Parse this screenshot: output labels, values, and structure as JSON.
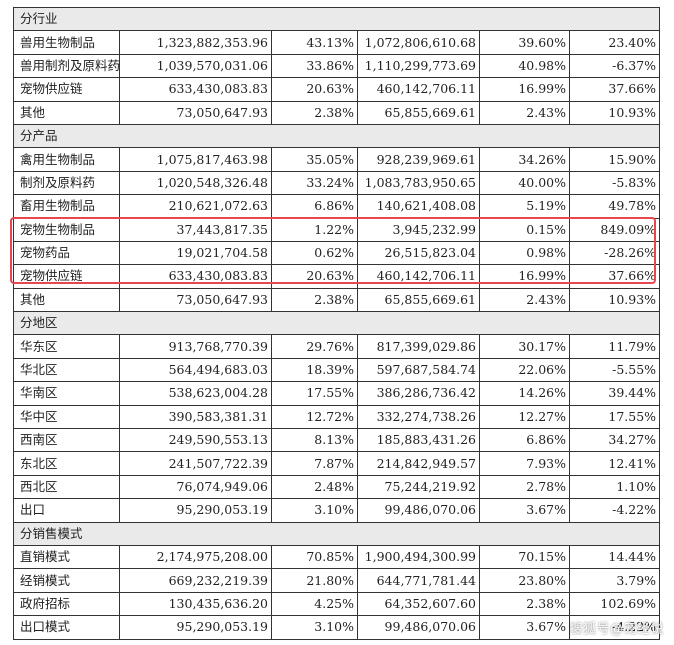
{
  "table": {
    "sections": [
      {
        "title": "分行业",
        "rows": [
          {
            "label": "兽用生物制品",
            "c1": "1,323,882,353.96",
            "c2": "43.13%",
            "c3": "1,072,806,610.68",
            "c4": "39.60%",
            "c5": "23.40%"
          },
          {
            "label": "兽用制剂及原料药",
            "c1": "1,039,570,031.06",
            "c2": "33.86%",
            "c3": "1,110,299,773.69",
            "c4": "40.98%",
            "c5": "-6.37%"
          },
          {
            "label": "宠物供应链",
            "c1": "633,430,083.83",
            "c2": "20.63%",
            "c3": "460,142,706.11",
            "c4": "16.99%",
            "c5": "37.66%"
          },
          {
            "label": "其他",
            "c1": "73,050,647.93",
            "c2": "2.38%",
            "c3": "65,855,669.61",
            "c4": "2.43%",
            "c5": "10.93%"
          }
        ]
      },
      {
        "title": "分产品",
        "rows": [
          {
            "label": "禽用生物制品",
            "c1": "1,075,817,463.98",
            "c2": "35.05%",
            "c3": "928,239,969.61",
            "c4": "34.26%",
            "c5": "15.90%"
          },
          {
            "label": "制剂及原料药",
            "c1": "1,020,548,326.48",
            "c2": "33.24%",
            "c3": "1,083,783,950.65",
            "c4": "40.00%",
            "c5": "-5.83%"
          },
          {
            "label": "畜用生物制品",
            "c1": "210,621,072.63",
            "c2": "6.86%",
            "c3": "140,621,408.08",
            "c4": "5.19%",
            "c5": "49.78%"
          },
          {
            "label": "宠物生物制品",
            "c1": "37,443,817.35",
            "c2": "1.22%",
            "c3": "3,945,232.99",
            "c4": "0.15%",
            "c5": "849.09%"
          },
          {
            "label": "宠物药品",
            "c1": "19,021,704.58",
            "c2": "0.62%",
            "c3": "26,515,823.04",
            "c4": "0.98%",
            "c5": "-28.26%"
          },
          {
            "label": "宠物供应链",
            "c1": "633,430,083.83",
            "c2": "20.63%",
            "c3": "460,142,706.11",
            "c4": "16.99%",
            "c5": "37.66%"
          },
          {
            "label": "其他",
            "c1": "73,050,647.93",
            "c2": "2.38%",
            "c3": "65,855,669.61",
            "c4": "2.43%",
            "c5": "10.93%"
          }
        ]
      },
      {
        "title": "分地区",
        "rows": [
          {
            "label": "华东区",
            "c1": "913,768,770.39",
            "c2": "29.76%",
            "c3": "817,399,029.86",
            "c4": "30.17%",
            "c5": "11.79%"
          },
          {
            "label": "华北区",
            "c1": "564,494,683.03",
            "c2": "18.39%",
            "c3": "597,687,584.74",
            "c4": "22.06%",
            "c5": "-5.55%"
          },
          {
            "label": "华南区",
            "c1": "538,623,004.28",
            "c2": "17.55%",
            "c3": "386,286,736.42",
            "c4": "14.26%",
            "c5": "39.44%"
          },
          {
            "label": "华中区",
            "c1": "390,583,381.31",
            "c2": "12.72%",
            "c3": "332,274,738.26",
            "c4": "12.27%",
            "c5": "17.55%"
          },
          {
            "label": "西南区",
            "c1": "249,590,553.13",
            "c2": "8.13%",
            "c3": "185,883,431.26",
            "c4": "6.86%",
            "c5": "34.27%"
          },
          {
            "label": "东北区",
            "c1": "241,507,722.39",
            "c2": "7.87%",
            "c3": "214,842,949.57",
            "c4": "7.93%",
            "c5": "12.41%"
          },
          {
            "label": "西北区",
            "c1": "76,074,949.06",
            "c2": "2.48%",
            "c3": "75,244,219.92",
            "c4": "2.78%",
            "c5": "1.10%"
          },
          {
            "label": "出口",
            "c1": "95,290,053.19",
            "c2": "3.10%",
            "c3": "99,486,070.06",
            "c4": "3.67%",
            "c5": "-4.22%"
          }
        ]
      },
      {
        "title": "分销售模式",
        "rows": [
          {
            "label": "直销模式",
            "c1": "2,174,975,208.00",
            "c2": "70.85%",
            "c3": "1,900,494,300.99",
            "c4": "70.15%",
            "c5": "14.44%"
          },
          {
            "label": "经销模式",
            "c1": "669,232,219.39",
            "c2": "21.80%",
            "c3": "644,771,781.44",
            "c4": "23.80%",
            "c5": "3.79%"
          },
          {
            "label": "政府招标",
            "c1": "130,435,636.20",
            "c2": "4.25%",
            "c3": "64,352,607.60",
            "c4": "2.38%",
            "c5": "102.69%"
          },
          {
            "label": "出口模式",
            "c1": "95,290,053.19",
            "c2": "3.10%",
            "c3": "99,486,070.06",
            "c4": "3.67%",
            "c5": "-4.22%"
          }
        ]
      }
    ]
  },
  "highlight": {
    "color": "#e8464f"
  },
  "watermark": "搜狐号@宠经说"
}
